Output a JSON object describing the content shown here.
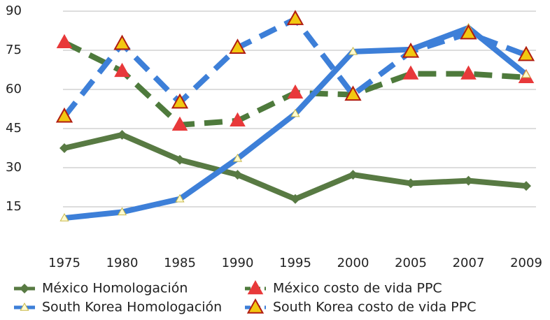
{
  "chart_data": {
    "type": "line",
    "categories": [
      "1975",
      "1980",
      "1985",
      "1990",
      "1995",
      "2000",
      "2005",
      "2007",
      "2009"
    ],
    "ylim": [
      0,
      90
    ],
    "yticks": [
      15,
      30,
      45,
      60,
      75,
      90
    ],
    "grid": true,
    "series": [
      {
        "name": "México Homologación",
        "color": "#587a43",
        "dash": false,
        "marker": "diamond",
        "values": [
          37.5,
          42.6,
          33,
          27.3,
          18,
          27.3,
          24,
          25,
          23
        ]
      },
      {
        "name": "México costo de vida PPC",
        "color": "#4e7a3c",
        "dash": true,
        "marker": "red-triangle",
        "values": [
          78,
          67,
          46.4,
          48,
          58.7,
          58,
          66,
          66,
          64.6
        ]
      },
      {
        "name": "South Korea Homologación",
        "color": "#3d7fd8",
        "dash": false,
        "marker": "small-triangle",
        "values": [
          10.7,
          13,
          18,
          33.5,
          50.7,
          74.5,
          75.3,
          83.6,
          65.7
        ]
      },
      {
        "name": "South Korea costo de vida PPC",
        "color": "#3d7fd8",
        "dash": true,
        "marker": "yellow-triangle",
        "values": [
          49.6,
          77.5,
          55,
          76,
          87,
          58,
          74.5,
          81.5,
          73.2
        ]
      }
    ]
  }
}
